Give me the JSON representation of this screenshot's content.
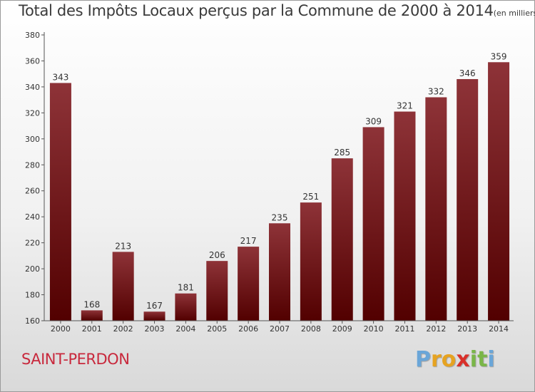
{
  "title": "Total des Impôts Locaux perçus par la Commune de 2000 à 2014",
  "title_unit": "(en milliers d'€)",
  "commune": "SAINT-PERDON",
  "logo": {
    "letters": [
      "P",
      "r",
      "o",
      "x",
      "i",
      "t",
      "i"
    ],
    "colors": [
      "#6aa6d8",
      "#e6a321",
      "#e6a321",
      "#d9302a",
      "#7ab648",
      "#7ab648",
      "#6aa6d8"
    ]
  },
  "colors": {
    "bar_top": "#8e3338",
    "bar_bottom": "#520000",
    "commune": "#c8283c"
  },
  "chart_data": {
    "type": "bar",
    "categories": [
      "2000",
      "2001",
      "2002",
      "2003",
      "2004",
      "2005",
      "2006",
      "2007",
      "2008",
      "2009",
      "2010",
      "2011",
      "2012",
      "2013",
      "2014"
    ],
    "values": [
      343,
      168,
      213,
      167,
      181,
      206,
      217,
      235,
      251,
      285,
      309,
      321,
      332,
      346,
      359
    ],
    "ylim": [
      160,
      380
    ],
    "yticks": [
      160,
      180,
      200,
      220,
      240,
      260,
      280,
      300,
      320,
      340,
      360,
      380
    ],
    "grid": false
  }
}
